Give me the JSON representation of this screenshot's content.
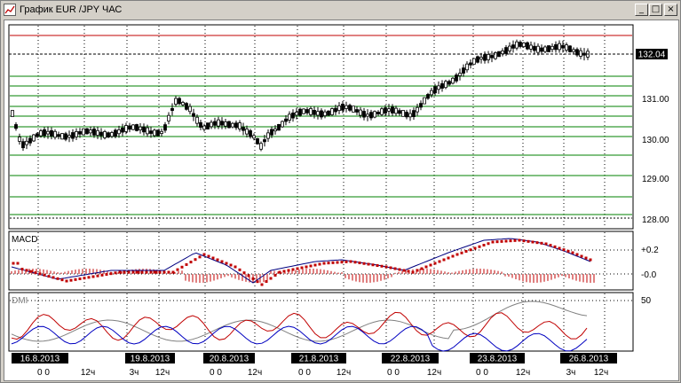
{
  "window": {
    "title": "График EUR /JPY  ЧАС",
    "minimize_glyph": "_",
    "maximize_glyph": "□",
    "close_glyph": "×"
  },
  "price_panel": {
    "current_price": "132.04",
    "price_labels": [
      "131.00",
      "130.00",
      "129.00",
      "128.00"
    ]
  },
  "macd_panel": {
    "title": "MACD",
    "scale_labels": [
      "+0.2",
      "-0.0"
    ]
  },
  "dmi_panel": {
    "title": "DMI",
    "scale_labels": [
      "50"
    ]
  },
  "time_axis": {
    "dates": [
      "16.8.2013",
      "19.8.2013",
      "20.8.2013",
      "21.8.2013",
      "22.8.2013",
      "23.8.2013",
      "26.8.2013"
    ],
    "hours": [
      "0 0",
      "12ч",
      "3ч",
      "12ч",
      "0 0",
      "12ч",
      "0 0",
      "12ч",
      "0 0",
      "12ч",
      "0 0",
      "12ч",
      "3ч",
      "12ч"
    ]
  },
  "colors": {
    "candle": "#000000",
    "red_line": "#c00000",
    "green_line": "#008000",
    "macd_line": "#000080",
    "macd_signal": "#c00000",
    "dmi_plus": "#c00000",
    "dmi_minus": "#0000c0",
    "adx": "#808080",
    "date_label_bg": "#000000",
    "date_label_fg": "#ffffff"
  }
}
